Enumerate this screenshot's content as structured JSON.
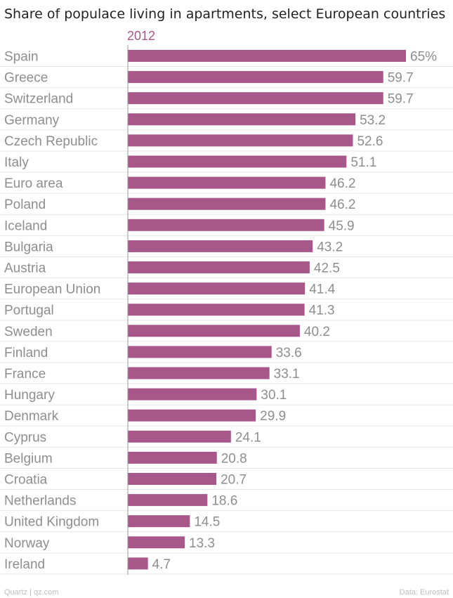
{
  "colors": {
    "bar": "#a8578a",
    "series_label": "#a8578a",
    "grid": "#e6e6e6",
    "axis": "#9a9a9a"
  },
  "footer": {
    "source_left": "Quartz | qz.com",
    "source_right": "Data: Eurostat"
  },
  "chart_data": {
    "type": "bar",
    "orientation": "horizontal",
    "title": "Share of populace living in apartments, select European countries",
    "series": [
      {
        "name": "2012",
        "values": [
          65,
          59.7,
          59.7,
          53.2,
          52.6,
          51.1,
          46.2,
          46.2,
          45.9,
          43.2,
          42.5,
          41.4,
          41.3,
          40.2,
          33.6,
          33.1,
          30.1,
          29.9,
          24.1,
          20.8,
          20.7,
          18.6,
          14.5,
          13.3,
          4.7
        ]
      }
    ],
    "categories": [
      "Spain",
      "Greece",
      "Switzerland",
      "Germany",
      "Czech Republic",
      "Italy",
      "Euro area",
      "Poland",
      "Iceland",
      "Bulgaria",
      "Austria",
      "European Union",
      "Portugal",
      "Sweden",
      "Finland",
      "France",
      "Hungary",
      "Denmark",
      "Cyprus",
      "Belgium",
      "Croatia",
      "Netherlands",
      "United Kingdom",
      "Norway",
      "Ireland"
    ],
    "value_labels": [
      "65%",
      "59.7",
      "59.7",
      "53.2",
      "52.6",
      "51.1",
      "46.2",
      "46.2",
      "45.9",
      "43.2",
      "42.5",
      "41.4",
      "41.3",
      "40.2",
      "33.6",
      "33.1",
      "30.1",
      "29.9",
      "24.1",
      "20.8",
      "20.7",
      "18.6",
      "14.5",
      "13.3",
      "4.7"
    ],
    "xlim": [
      0,
      65
    ],
    "xlabel": "",
    "ylabel": "",
    "grid": true,
    "legend": "top-left"
  }
}
